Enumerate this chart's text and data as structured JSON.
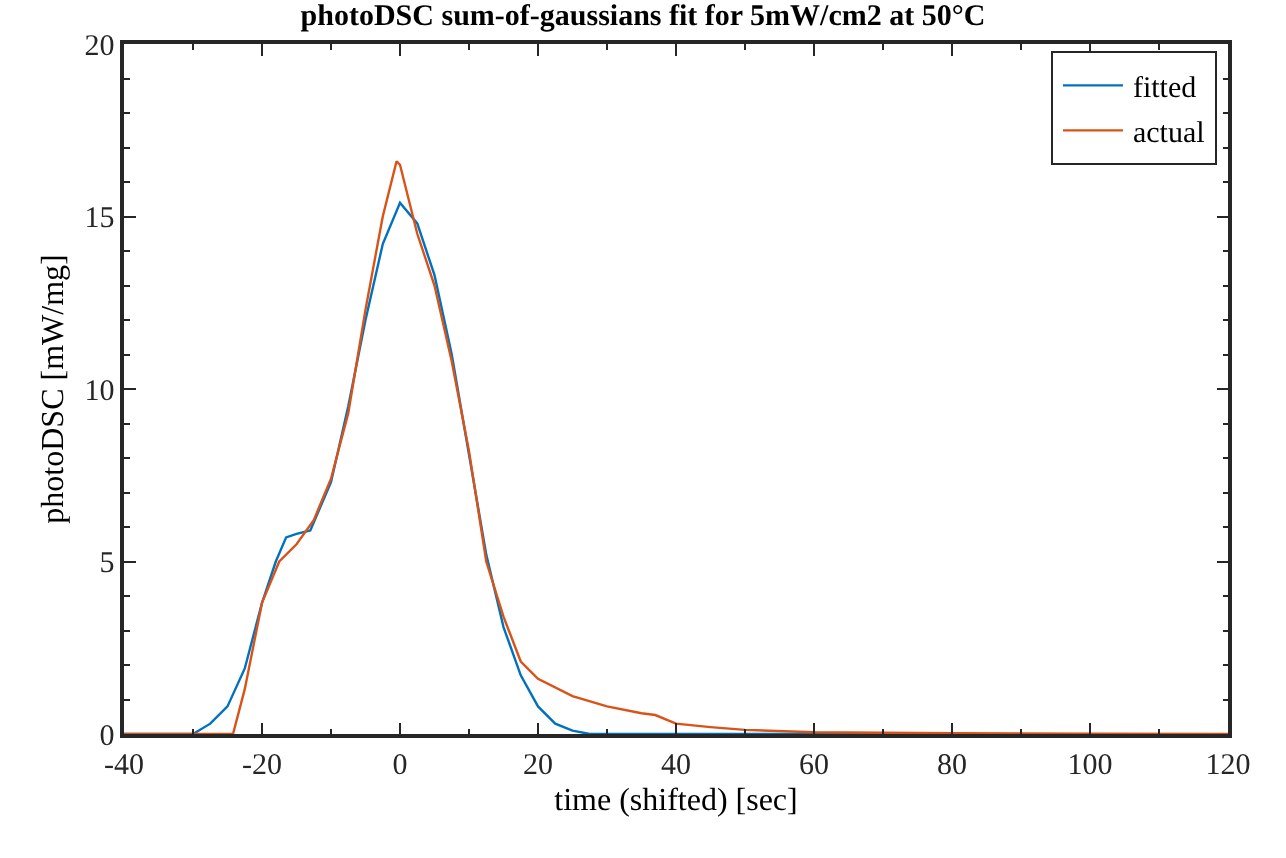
{
  "chart_data": {
    "type": "line",
    "title": "photoDSC sum-of-gaussians fit for 5mW/cm2 at 50°C",
    "xlabel": "time (shifted) [sec]",
    "ylabel": "photoDSC [mW/mg]",
    "xlim": [
      -40,
      120
    ],
    "xticks": [
      -40,
      -20,
      0,
      20,
      40,
      60,
      80,
      100,
      120
    ],
    "ylim": [
      0,
      20
    ],
    "yticks": [
      0,
      5,
      10,
      15,
      20
    ],
    "legend": "top right",
    "marker": "none",
    "line_style": "solid",
    "series": [
      {
        "name": "fitted",
        "color": "#0072bd",
        "x": [
          -40,
          -30,
          -27.5,
          -25,
          -22.5,
          -20,
          -18,
          -16.5,
          -15,
          -13,
          -10,
          -7.5,
          -5,
          -2.5,
          0,
          2.5,
          5,
          7.5,
          10,
          12.5,
          15,
          17.5,
          20,
          22.5,
          25,
          27.5,
          40,
          55,
          70
        ],
        "values": [
          0,
          0,
          0.3,
          0.8,
          1.9,
          3.8,
          5.0,
          5.7,
          5.8,
          5.9,
          7.3,
          9.5,
          12.0,
          14.2,
          15.4,
          14.8,
          13.3,
          11.0,
          8.1,
          5.2,
          3.1,
          1.7,
          0.8,
          0.3,
          0.1,
          0,
          0,
          0,
          0
        ]
      },
      {
        "name": "actual",
        "color": "#d95319",
        "x": [
          -40,
          -24.2,
          -22.5,
          -20,
          -17.5,
          -15,
          -12.5,
          -10,
          -7.5,
          -5,
          -2.5,
          -0.5,
          0,
          2.5,
          5,
          7.5,
          10,
          12.5,
          15,
          17.5,
          20,
          25,
          30,
          35,
          37,
          40,
          45,
          50,
          60,
          80,
          100,
          120
        ],
        "values": [
          0,
          0,
          1.3,
          3.8,
          5.0,
          5.5,
          6.2,
          7.4,
          9.3,
          12.3,
          15.0,
          16.6,
          16.5,
          14.5,
          13.0,
          10.8,
          8.2,
          5.0,
          3.4,
          2.1,
          1.6,
          1.1,
          0.8,
          0.6,
          0.55,
          0.3,
          0.2,
          0.12,
          0.05,
          0.02,
          0.01,
          0
        ]
      }
    ]
  }
}
